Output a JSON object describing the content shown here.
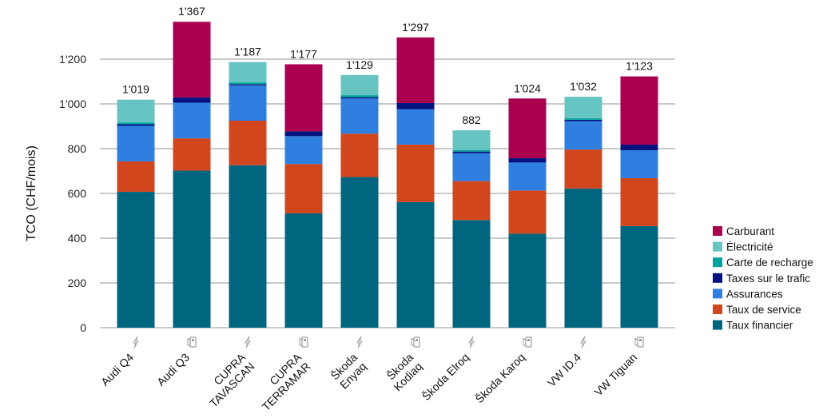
{
  "chart_data": {
    "type": "bar",
    "stacked": true,
    "title": "",
    "xlabel": "",
    "ylabel": "TCO (CHF/mois)",
    "ylim": [
      0,
      1400
    ],
    "yticks": [
      0,
      200,
      400,
      600,
      800,
      1000,
      1200
    ],
    "ytick_labels": [
      "0",
      "200",
      "400",
      "600",
      "800",
      "1'000",
      "1'200"
    ],
    "grid": true,
    "legend_position": "right",
    "categories": [
      {
        "lines": [
          "Audi Q4"
        ],
        "icon": "lightning-icon"
      },
      {
        "lines": [
          "Audi Q3"
        ],
        "icon": "fuel-pump-icon"
      },
      {
        "lines": [
          "CUPRA",
          "TAVASCAN"
        ],
        "icon": "lightning-icon"
      },
      {
        "lines": [
          "CUPRA",
          "TERRAMAR"
        ],
        "icon": "fuel-pump-icon"
      },
      {
        "lines": [
          "Škoda",
          "Enyaq"
        ],
        "icon": "lightning-icon"
      },
      {
        "lines": [
          "Škoda",
          "Kodiaq"
        ],
        "icon": "fuel-pump-icon"
      },
      {
        "lines": [
          "Škoda Elroq"
        ],
        "icon": "lightning-icon"
      },
      {
        "lines": [
          "Škoda Karoq"
        ],
        "icon": "fuel-pump-icon"
      },
      {
        "lines": [
          "VW ID.4"
        ],
        "icon": "lightning-icon"
      },
      {
        "lines": [
          "VW Tiguan"
        ],
        "icon": "fuel-pump-icon"
      }
    ],
    "totals": [
      "1'019",
      "1'367",
      "1'187",
      "1'177",
      "1'129",
      "1'297",
      "882",
      "1'024",
      "1'032",
      "1'123"
    ],
    "series": [
      {
        "name": "Taux financier",
        "color": "#006680",
        "values": [
          607,
          702,
          726,
          511,
          673,
          561,
          481,
          420,
          622,
          454
        ]
      },
      {
        "name": "Taux de service",
        "color": "#D2461E",
        "values": [
          136,
          144,
          199,
          220,
          194,
          257,
          174,
          193,
          174,
          214
        ]
      },
      {
        "name": "Assurances",
        "color": "#2E7FE0",
        "values": [
          159,
          159,
          158,
          125,
          157,
          158,
          125,
          125,
          127,
          125
        ]
      },
      {
        "name": "Taxes sur le trafic",
        "color": "#00147F",
        "values": [
          7,
          24,
          5,
          21,
          6,
          28,
          7,
          19,
          6,
          25
        ]
      },
      {
        "name": "Carte de recharge",
        "color": "#00A39C",
        "values": [
          7,
          0,
          8,
          0,
          9,
          0,
          7,
          0,
          7,
          0
        ]
      },
      {
        "name": "Électricité",
        "color": "#66C4C2",
        "values": [
          103,
          0,
          91,
          0,
          90,
          0,
          88,
          0,
          96,
          0
        ]
      },
      {
        "name": "Carburant",
        "color": "#AA004F",
        "values": [
          0,
          338,
          0,
          300,
          0,
          293,
          0,
          267,
          0,
          305
        ]
      }
    ]
  }
}
